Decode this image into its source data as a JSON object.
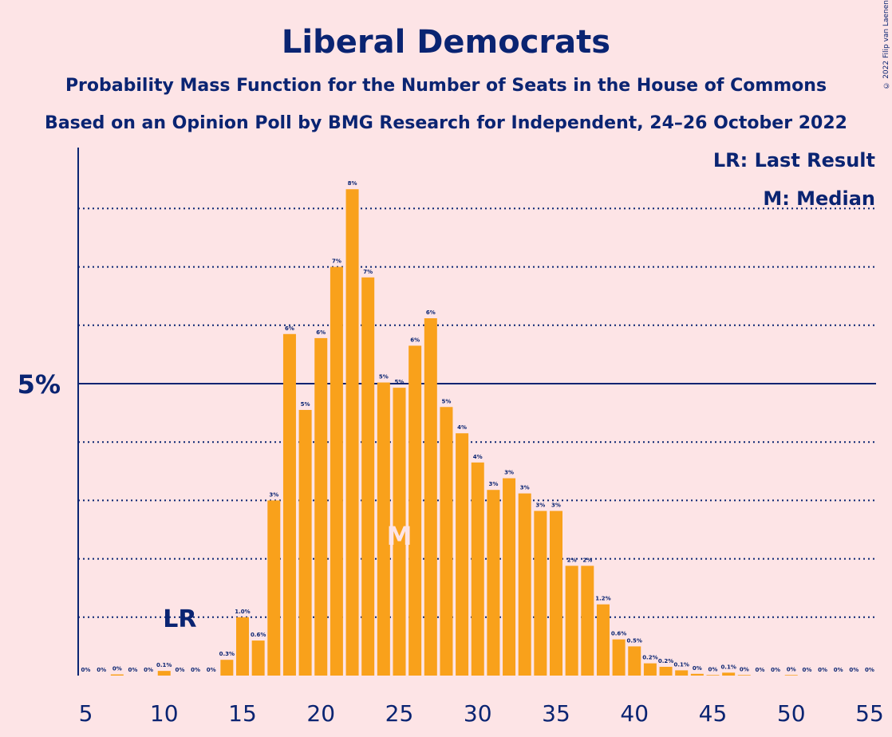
{
  "title": "Liberal Democrats",
  "subtitle1": "Probability Mass Function for the Number of Seats in the House of Commons",
  "subtitle2": "Based on an Opinion Poll by BMG Research for Independent, 24–26 October 2022",
  "copyright": "© 2022 Filip van Laenen",
  "legend": {
    "lr": "LR: Last Result",
    "m": "M: Median"
  },
  "markers": {
    "lr_label": "LR",
    "lr_seat": 11,
    "m_label": "M",
    "m_seat": 25
  },
  "colors": {
    "background": "#fde4e6",
    "bar": "#f9a11b",
    "text": "#0a2472",
    "marker_median": "#fde4e6"
  },
  "chart_data": {
    "type": "bar",
    "xlim": [
      5,
      55
    ],
    "ylim": [
      0,
      8.5
    ],
    "x_ticks": [
      "5",
      "10",
      "15",
      "20",
      "25",
      "30",
      "35",
      "40",
      "45",
      "50",
      "55"
    ],
    "y_tick_label": "5%",
    "y_major": 5,
    "y_gridlines": [
      1,
      2,
      3,
      4,
      6,
      7,
      8
    ],
    "series": [
      {
        "seats": [
          5,
          6,
          7,
          8,
          9,
          10,
          11,
          12,
          13,
          14,
          15,
          16,
          17,
          18,
          19,
          20,
          21,
          22,
          23,
          24,
          25,
          26,
          27,
          28,
          29,
          30,
          31,
          32,
          33,
          34,
          35,
          36,
          37,
          38,
          39,
          40,
          41,
          42,
          43,
          44,
          45,
          46,
          47,
          48,
          49,
          50,
          51,
          52,
          53,
          54,
          55
        ],
        "values": [
          0,
          0,
          0.02,
          0,
          0,
          0.08,
          0,
          0,
          0,
          0.27,
          1.0,
          0.6,
          3.0,
          5.85,
          4.55,
          5.78,
          7.0,
          8.33,
          6.82,
          5.02,
          4.93,
          5.65,
          6.12,
          4.6,
          4.15,
          3.65,
          3.18,
          3.38,
          3.12,
          2.82,
          2.82,
          1.88,
          1.88,
          1.22,
          0.62,
          0.5,
          0.21,
          0.15,
          0.09,
          0.03,
          0.01,
          0.05,
          0.01,
          0,
          0,
          0.01,
          0,
          0,
          0,
          0,
          0
        ],
        "labels": [
          "0%",
          "0%",
          "0%",
          "0%",
          "0%",
          "0.1%",
          "0%",
          "0%",
          "0%",
          "0.3%",
          "1.0%",
          "0.6%",
          "3%",
          "6%",
          "5%",
          "6%",
          "7%",
          "8%",
          "7%",
          "5%",
          "5%",
          "6%",
          "6%",
          "5%",
          "4%",
          "4%",
          "3%",
          "3%",
          "3%",
          "3%",
          "3%",
          "2%",
          "2%",
          "1.2%",
          "0.6%",
          "0.5%",
          "0.2%",
          "0.2%",
          "0.1%",
          "0%",
          "0%",
          "0.1%",
          "0%",
          "0%",
          "0%",
          "0%",
          "0%",
          "0%",
          "0%",
          "0%",
          "0%"
        ]
      }
    ]
  }
}
